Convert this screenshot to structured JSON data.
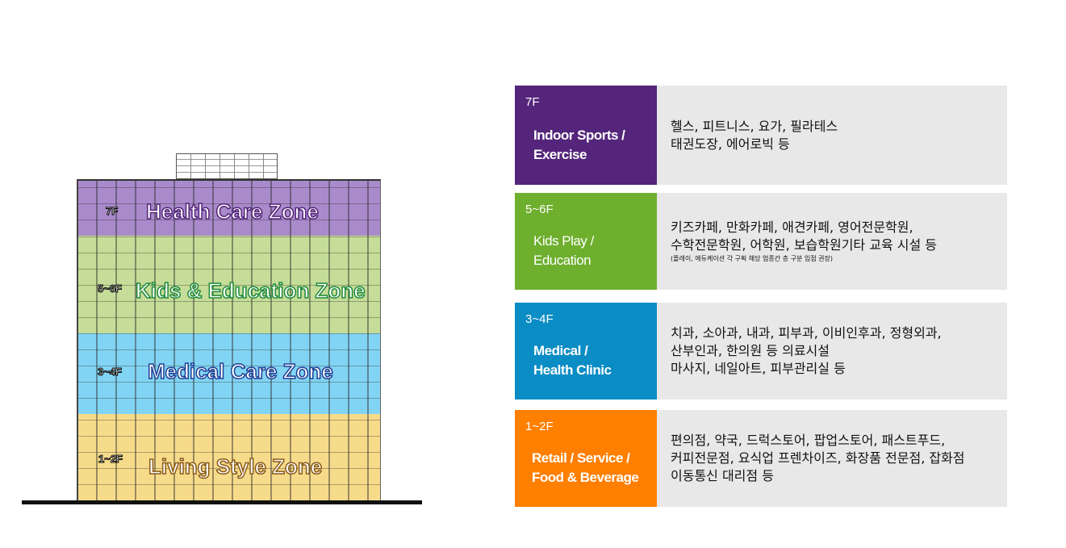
{
  "building": {
    "zones": [
      {
        "floor": "7F",
        "name": "Health Care Zone",
        "color": "#a98acb",
        "text_stroke": "#54257a"
      },
      {
        "floor": "5~6F",
        "name": "Kids & Education Zone",
        "color": "#c5dd98",
        "text_stroke": "#1f8a3a"
      },
      {
        "floor": "3~4F",
        "name": "Medical Care Zone",
        "color": "#82d4f4",
        "text_stroke": "#1f3f96"
      },
      {
        "floor": "1~2F",
        "name": "Living Style Zone",
        "color": "#f6db8a",
        "text_stroke": "#8a5a1a"
      }
    ]
  },
  "table": {
    "rows": [
      {
        "floor": "7F",
        "name_lines": [
          "Indoor Sports /",
          "Exercise"
        ],
        "color": "#54257a",
        "desc": [
          "헬스, 피트니스, 요가, 필라테스",
          "태권도장, 에어로빅 등"
        ]
      },
      {
        "floor": "5~6F",
        "name_lines": [
          "Kids Play /",
          "Education"
        ],
        "color": "#6eaf2e",
        "desc": [
          "키즈카페, 만화카페, 애견카페, 영어전문학원,",
          "수학전문학원, 어학원, 보습학원기타 교육 시설 등"
        ],
        "note": "(플레이, 에듀케이션 각 구획 해당 업종간 층 구분 입점 권장)"
      },
      {
        "floor": "3~4F",
        "name_lines": [
          "Medical /",
          "Health Clinic"
        ],
        "color": "#0a8cc4",
        "desc": [
          "치과, 소아과, 내과, 피부과, 이비인후과, 정형외과,",
          "산부인과, 한의원 등 의료시설",
          "마사지, 네일아트, 피부관리실 등"
        ]
      },
      {
        "floor": "1~2F",
        "name_lines": [
          "Retail / Service /",
          "Food & Beverage"
        ],
        "color": "#ff7f00",
        "desc": [
          "편의점, 약국, 드럭스토어, 팝업스토어, 패스트푸드,",
          "커피전문점, 요식업 프렌차이즈, 화장품 전문점, 잡화점",
          "이동통신 대리점 등"
        ]
      }
    ]
  }
}
